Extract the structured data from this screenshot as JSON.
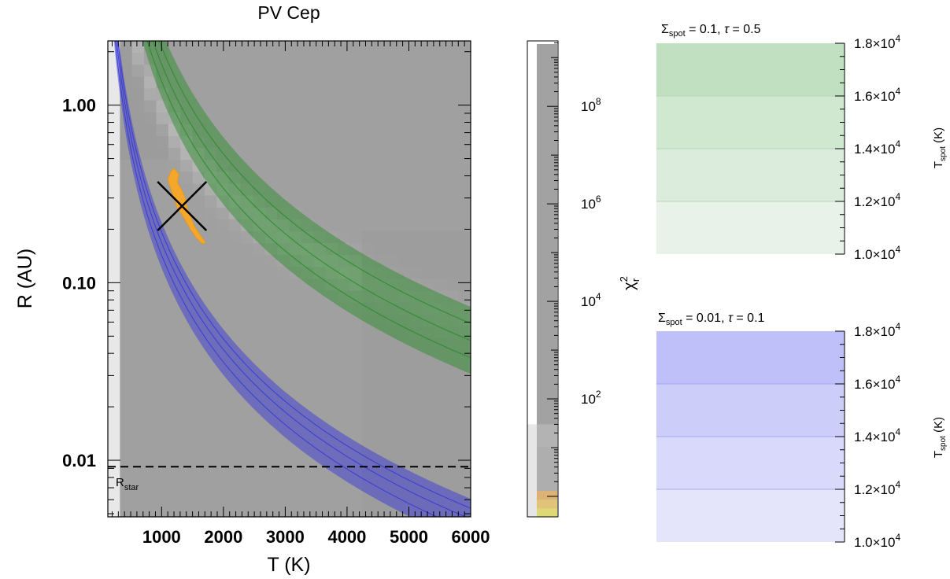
{
  "chart_data": [
    {
      "type": "heatmap",
      "title": "PV Cep",
      "xlabel": "T (K)",
      "ylabel": "R (AU)",
      "xlim": [
        130,
        6000
      ],
      "ylim": [
        0.0048,
        2.3
      ],
      "yscale": "log",
      "x_ticks": [
        1000,
        2000,
        3000,
        4000,
        5000,
        6000
      ],
      "x_tick_labels": [
        "1000",
        "2000",
        "3000",
        "4000",
        "5000",
        "6000"
      ],
      "y_ticks": [
        0.01,
        0.1,
        1.0
      ],
      "y_tick_labels": [
        "0.01",
        "0.10",
        "1.00"
      ],
      "rstar": {
        "label": "R",
        "sub": "star",
        "value": 0.0092
      },
      "best_fit": {
        "T": 1330,
        "R": 0.27
      },
      "bands": [
        {
          "name": "",
          "color": "#2e8b2e",
          "center_R_at_1000K": 1.7,
          "T_exponent": 2.0,
          "line_factors": [
            0.8,
            1.0,
            1.25
          ],
          "band_factors": [
            0.65,
            1.55
          ]
        },
        {
          "name": "",
          "color": "#3a3ad6",
          "center_R_at_1000K": 0.168,
          "T_exponent": 2.0,
          "line_factors": [
            0.85,
            1.0,
            1.15
          ],
          "band_factors": [
            0.72,
            1.3
          ]
        }
      ]
    },
    {
      "type": "heatmap",
      "title": "",
      "ylabel": "χ²r",
      "ylabel_main": "χ",
      "ylabel_sup": "2",
      "ylabel_sub": "r",
      "yscale": "log",
      "ylim": [
        0.38,
        2200000000.0
      ],
      "y_ticks": [
        100,
        10000,
        1000000,
        100000000
      ],
      "y_tick_bases": [
        "10",
        "10",
        "10",
        "10"
      ],
      "y_tick_exps": [
        "2",
        "4",
        "6",
        "8"
      ],
      "colors_bottom": [
        "#f0e830",
        "#f2c23a",
        "#f0a030"
      ]
    },
    {
      "type": "heatmap",
      "title_parts": {
        "sigma": "Σ",
        "sub": "spot",
        "rest": " = 0.1, ",
        "tau": "τ",
        "tau_rest": " = 0.5"
      },
      "ylabel_main": "T",
      "ylabel_sub": "spot",
      "ylabel_unit": " (K)",
      "ylim": [
        10000,
        18000
      ],
      "levels": [
        10000,
        12000,
        14000,
        16000,
        18000
      ],
      "y_tick_mant": [
        "1.0",
        "1.2",
        "1.4",
        "1.6",
        "1.8"
      ],
      "y_tick_times": "×10",
      "y_tick_exp": "4",
      "colors": [
        "#e8f2e8",
        "#dcecdc",
        "#d0e7d0",
        "#c1dfc1"
      ],
      "line_color": "#b4d6b4"
    },
    {
      "type": "heatmap",
      "title_parts": {
        "sigma": "Σ",
        "sub": "spot",
        "rest": " = 0.01, ",
        "tau": "τ",
        "tau_rest": " = 0.1"
      },
      "ylabel_main": "T",
      "ylabel_sub": "spot",
      "ylabel_unit": " (K)",
      "ylim": [
        10000,
        18000
      ],
      "levels": [
        10000,
        12000,
        14000,
        16000,
        18000
      ],
      "y_tick_mant": [
        "1.0",
        "1.2",
        "1.4",
        "1.6",
        "1.8"
      ],
      "y_tick_times": "×10",
      "y_tick_exp": "4",
      "colors": [
        "#e4e4fb",
        "#d9d9fb",
        "#cdcdfa",
        "#bfbff9"
      ],
      "line_color": "#a9a9ee"
    }
  ]
}
